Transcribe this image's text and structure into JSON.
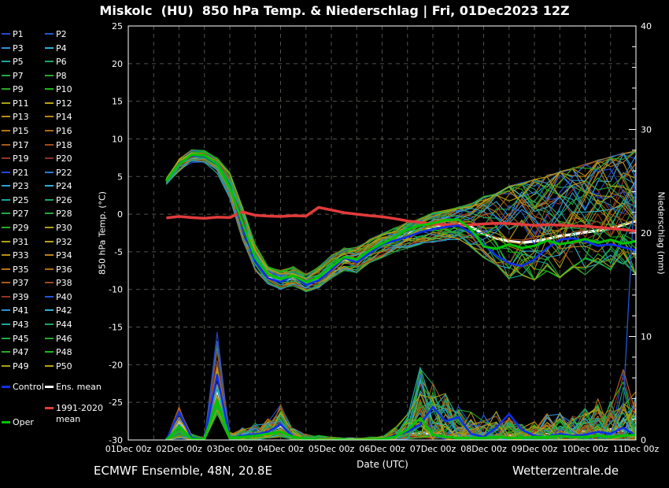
{
  "title": "Miskolc  (HU)  850 hPa Temp. & Niederschlag | Fri, 01Dec2023 12Z",
  "footer": {
    "left": "ECMWF Ensemble, 48N, 20.8E",
    "right": "Wetterzentrale.de"
  },
  "style": {
    "background": "#000000",
    "text": "#ffffff",
    "grid": "#52524a",
    "axis": "#ffffff"
  },
  "axes": {
    "x_label": "Date (UTC)",
    "y_left_label": "850 hPa Temp. (°C)",
    "y_right_label": "Niederschlag (mm)",
    "x_ticks": [
      "01Dec 00z",
      "02Dec 00z",
      "03Dec 00z",
      "04Dec 00z",
      "05Dec 00z",
      "06Dec 00z",
      "07Dec 00z",
      "08Dec 00z",
      "09Dec 00z",
      "10Dec 00z",
      "11Dec 00z"
    ],
    "y_left_ticks": [
      25,
      20,
      15,
      10,
      5,
      0,
      -5,
      -10,
      -15,
      -20,
      -25,
      -30
    ],
    "y_right_ticks": [
      40,
      30,
      20,
      10,
      0
    ]
  },
  "legend": {
    "members": [
      {
        "label": "P1",
        "color": "#2348cf"
      },
      {
        "label": "P2",
        "color": "#2254d6"
      },
      {
        "label": "P3",
        "color": "#2f8fd2"
      },
      {
        "label": "P4",
        "color": "#2fb0d2"
      },
      {
        "label": "P5",
        "color": "#17a79a"
      },
      {
        "label": "P6",
        "color": "#1ba767"
      },
      {
        "label": "P7",
        "color": "#22a845"
      },
      {
        "label": "P8",
        "color": "#26a72f"
      },
      {
        "label": "P9",
        "color": "#2aa823"
      },
      {
        "label": "P10",
        "color": "#17bb17"
      },
      {
        "label": "P11",
        "color": "#aaa013"
      },
      {
        "label": "P12",
        "color": "#b8a313"
      },
      {
        "label": "P13",
        "color": "#ba8e13"
      },
      {
        "label": "P14",
        "color": "#ba8413"
      },
      {
        "label": "P15",
        "color": "#b57513"
      },
      {
        "label": "P16",
        "color": "#ad6a15"
      },
      {
        "label": "P17",
        "color": "#a55c17"
      },
      {
        "label": "P18",
        "color": "#9e4b1c"
      },
      {
        "label": "P19",
        "color": "#95331f"
      },
      {
        "label": "P20",
        "color": "#8c2d20"
      },
      {
        "label": "P21",
        "color": "#2348cf"
      },
      {
        "label": "P22",
        "color": "#2b7bd2"
      },
      {
        "label": "P23",
        "color": "#2fa0d2"
      },
      {
        "label": "P24",
        "color": "#2fb0d2"
      },
      {
        "label": "P25",
        "color": "#17a79a"
      },
      {
        "label": "P26",
        "color": "#1ba767"
      },
      {
        "label": "P27",
        "color": "#22a845"
      },
      {
        "label": "P28",
        "color": "#26a72f"
      },
      {
        "label": "P29",
        "color": "#2aa823"
      },
      {
        "label": "P30",
        "color": "#aaa013"
      },
      {
        "label": "P31",
        "color": "#b0a013"
      },
      {
        "label": "P32",
        "color": "#b8a313"
      },
      {
        "label": "P33",
        "color": "#ba8e13"
      },
      {
        "label": "P34",
        "color": "#ba8413"
      },
      {
        "label": "P35",
        "color": "#b57513"
      },
      {
        "label": "P36",
        "color": "#ad6a15"
      },
      {
        "label": "P37",
        "color": "#a55c17"
      },
      {
        "label": "P38",
        "color": "#9e4b1c"
      },
      {
        "label": "P39",
        "color": "#95331f"
      },
      {
        "label": "P40",
        "color": "#2254d6"
      },
      {
        "label": "P41",
        "color": "#2f8fd2"
      },
      {
        "label": "P42",
        "color": "#2fb0d2"
      },
      {
        "label": "P43",
        "color": "#17a79a"
      },
      {
        "label": "P44",
        "color": "#1ba767"
      },
      {
        "label": "P45",
        "color": "#22a845"
      },
      {
        "label": "P46",
        "color": "#26a72f"
      },
      {
        "label": "P47",
        "color": "#2aa823"
      },
      {
        "label": "P48",
        "color": "#17bb17"
      },
      {
        "label": "P49",
        "color": "#aaa013"
      },
      {
        "label": "P50",
        "color": "#b8a313"
      }
    ],
    "control": {
      "label": "Control",
      "color": "#0f2fe8"
    },
    "ens_mean": {
      "label": "Ens. mean",
      "color": "#ffffff"
    },
    "climate": {
      "label_line1": "1991-2020",
      "label_line2": "mean",
      "color": "#e23b3b"
    },
    "oper": {
      "label": "Oper",
      "color": "#00c400"
    }
  },
  "chart_data": {
    "type": "line",
    "title": "Miskolc (HU) 850 hPa Temp. & Niederschlag, ECMWF Ensemble run Fri 01Dec2023 12Z",
    "x_unit": "days since 01Dec2023 00z",
    "x_range": [
      0,
      10
    ],
    "y_left": {
      "label": "850 hPa Temp. (°C)",
      "range": [
        -30,
        25
      ],
      "grid_step": 5
    },
    "y_right": {
      "label": "Niederschlag (mm)",
      "range": [
        0,
        40
      ],
      "minor_tick": 2,
      "major_tick": 10
    },
    "t": [
      0.75,
      1,
      1.25,
      1.5,
      1.75,
      2,
      2.25,
      2.5,
      2.75,
      3,
      3.25,
      3.5,
      3.75,
      4,
      4.25,
      4.5,
      4.75,
      5,
      5.25,
      5.5,
      5.75,
      6,
      6.25,
      6.5,
      6.75,
      7,
      7.25,
      7.5,
      7.75,
      8,
      8.25,
      8.5,
      8.75,
      9,
      9.25,
      9.5,
      9.75,
      10
    ],
    "series": {
      "ens_mean_temp": [
        4.4,
        6.6,
        7.7,
        7.6,
        6.5,
        3.5,
        -1.5,
        -6.0,
        -8.3,
        -8.8,
        -8.4,
        -9.2,
        -8.6,
        -7.2,
        -6.0,
        -6.2,
        -5.0,
        -4.2,
        -3.4,
        -2.6,
        -2.2,
        -1.8,
        -1.5,
        -1.3,
        -1.7,
        -2.6,
        -3.2,
        -3.6,
        -3.8,
        -3.6,
        -3.3,
        -2.9,
        -2.7,
        -2.4,
        -2.2,
        -1.9,
        -1.4,
        -0.9
      ],
      "control_temp": [
        4.4,
        6.7,
        7.8,
        7.7,
        6.6,
        3.8,
        -1.8,
        -6.3,
        -8.5,
        -9.0,
        -8.2,
        -9.4,
        -8.8,
        -7.4,
        -5.8,
        -6.4,
        -5.2,
        -4.0,
        -3.5,
        -3.0,
        -2.4,
        -2.0,
        -1.7,
        -1.5,
        -2.5,
        -4.0,
        -5.5,
        -6.5,
        -6.9,
        -6.0,
        -4.5,
        -3.4,
        -3.2,
        -3.6,
        -4.2,
        -4.0,
        -4.4,
        -4.8
      ],
      "oper_temp": [
        4.4,
        6.6,
        7.9,
        7.8,
        6.7,
        3.6,
        -1.2,
        -5.8,
        -8.0,
        -8.6,
        -8.2,
        -9.0,
        -8.4,
        -7.0,
        -5.7,
        -6.0,
        -4.8,
        -3.9,
        -3.1,
        -2.0,
        -1.5,
        -1.2,
        -0.8,
        -0.7,
        -2.0,
        -4.3,
        -4.6,
        -4.0,
        -4.5,
        -4.2,
        -3.5,
        -4.0,
        -3.7,
        -3.3,
        -3.8,
        -3.4,
        -3.9,
        -3.6
      ],
      "climate_mean_temp": [
        -0.5,
        -0.3,
        -0.45,
        -0.55,
        -0.4,
        -0.45,
        0.3,
        -0.15,
        -0.25,
        -0.3,
        -0.2,
        -0.25,
        0.9,
        0.55,
        0.2,
        0.0,
        -0.2,
        -0.35,
        -0.6,
        -0.9,
        -1.1,
        -1.3,
        -1.4,
        -1.45,
        -1.4,
        -1.3,
        -1.2,
        -1.25,
        -1.35,
        -1.5,
        -1.4,
        -1.45,
        -1.55,
        -1.6,
        -1.75,
        -1.9,
        -2.05,
        -2.25
      ],
      "ens_mean_precip": [
        0,
        1.8,
        0.3,
        0.15,
        4.9,
        0.3,
        0.5,
        0.6,
        0.9,
        1.3,
        0.5,
        0.2,
        0.1,
        0.1,
        0.1,
        0.1,
        0.1,
        0.15,
        0.3,
        0.45,
        0.7,
        0.6,
        0.5,
        0.4,
        0.35,
        0.3,
        0.35,
        0.4,
        0.35,
        0.5,
        0.55,
        0.7,
        0.6,
        0.8,
        0.9,
        1.0,
        0.9,
        1.1
      ],
      "control_precip": [
        0,
        2.7,
        0.2,
        0.1,
        6.3,
        0.2,
        0.4,
        0.5,
        0.8,
        1.5,
        0.3,
        0.1,
        0,
        0,
        0,
        0,
        0,
        0.1,
        0.4,
        0.8,
        1.5,
        3.2,
        1.8,
        2.2,
        0.6,
        0.3,
        1.2,
        2.5,
        1.0,
        0.4,
        0.3,
        0.6,
        0.4,
        0.5,
        0.8,
        0.6,
        1.2,
        0.4
      ],
      "oper_precip": [
        0,
        1.3,
        0.1,
        0.1,
        3.8,
        0.2,
        0.3,
        0.4,
        0.6,
        0.8,
        0.3,
        0.1,
        0,
        0,
        0,
        0,
        0,
        0.1,
        0.3,
        1.0,
        2.1,
        0.5,
        0.3,
        0.2,
        0.2,
        0.2,
        0.3,
        0.2,
        0.2,
        0.3,
        0.3,
        0.4,
        0.3,
        0.3,
        0.4,
        0.3,
        0.4,
        0.5
      ]
    },
    "ensemble": {
      "count": 50,
      "temp_envelope_lo": [
        3.9,
        5.8,
        6.8,
        6.8,
        5.5,
        2.0,
        -3.5,
        -7.5,
        -9.3,
        -10.0,
        -9.5,
        -10.3,
        -9.8,
        -8.5,
        -7.5,
        -7.8,
        -6.5,
        -5.8,
        -5.0,
        -4.5,
        -4.0,
        -3.8,
        -3.5,
        -3.5,
        -4.5,
        -6.0,
        -7.0,
        -9.0,
        -8.5,
        -9.2,
        -8.0,
        -8.8,
        -7.5,
        -8.5,
        -7.0,
        -8.0,
        -7.0,
        -8.5
      ],
      "temp_envelope_hi": [
        4.9,
        7.3,
        8.6,
        8.4,
        7.5,
        5.5,
        1.0,
        -4.0,
        -7.0,
        -7.5,
        -7.0,
        -8.0,
        -7.0,
        -5.5,
        -4.5,
        -4.3,
        -3.3,
        -2.5,
        -1.8,
        -1.0,
        -0.5,
        0.2,
        0.5,
        1.0,
        1.5,
        2.5,
        3.0,
        4.0,
        4.5,
        5.0,
        5.5,
        6.0,
        6.5,
        7.0,
        7.5,
        8.0,
        8.5,
        9.0
      ],
      "precip_envelope_lo": [
        0,
        0.2,
        0,
        0,
        2.5,
        0,
        0,
        0,
        0.2,
        0.3,
        0,
        0,
        0,
        0,
        0,
        0,
        0,
        0,
        0,
        0.1,
        0.2,
        0.1,
        0.1,
        0,
        0,
        0,
        0,
        0,
        0,
        0,
        0,
        0,
        0,
        0,
        0,
        0,
        0,
        0
      ],
      "precip_envelope_hi": [
        0,
        3.4,
        0.6,
        0.4,
        10.4,
        0.8,
        1.2,
        1.8,
        2.2,
        3.6,
        1.2,
        0.6,
        0.5,
        0.3,
        0.2,
        0.2,
        0.3,
        0.4,
        1.2,
        2.5,
        7.0,
        5.5,
        4.5,
        3.5,
        2.8,
        2.5,
        2.8,
        2.2,
        1.6,
        1.8,
        2.6,
        3.0,
        2.4,
        3.2,
        4.6,
        3.8,
        6.6,
        5.0
      ]
    },
    "extra_precip_events": [
      {
        "name": "member-spike-06dec-teal",
        "color": "#17a79a",
        "points": [
          [
            5.25,
            0.3
          ],
          [
            5.5,
            2.2
          ],
          [
            5.75,
            7.0
          ],
          [
            6.0,
            3.0
          ],
          [
            6.25,
            4.4
          ],
          [
            6.5,
            2.0
          ],
          [
            6.75,
            0.6
          ],
          [
            7.0,
            0.3
          ]
        ]
      },
      {
        "name": "member-spike-11dec-blue",
        "color": "#2254d6",
        "points": [
          [
            9.25,
            0.2
          ],
          [
            9.5,
            0.6
          ],
          [
            9.75,
            3.5
          ],
          [
            10,
            26.5
          ]
        ]
      },
      {
        "name": "member-spike-10dec-orange",
        "color": "#a55c17",
        "points": [
          [
            9.0,
            0.5
          ],
          [
            9.25,
            1.8
          ],
          [
            9.5,
            3.0
          ],
          [
            9.75,
            6.8
          ],
          [
            10,
            2.5
          ]
        ]
      }
    ]
  }
}
